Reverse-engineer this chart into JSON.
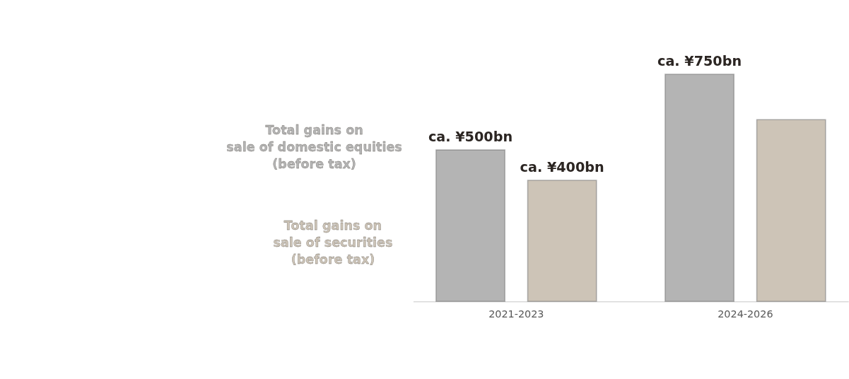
{
  "chart_data": {
    "type": "bar",
    "categories": [
      "2021-2023",
      "2024-2026"
    ],
    "series": [
      {
        "name": "Total gains on\nsale of domestic equities\n(before tax)",
        "color": "#b4b4b4",
        "values": [
          500,
          750
        ],
        "value_labels": [
          "ca. ¥500bn",
          "ca. ¥750bn"
        ]
      },
      {
        "name": "Total gains on\nsale of securities\n(before tax)",
        "color": "#cdc4b7",
        "values": [
          400,
          600
        ],
        "value_labels": [
          "ca. ¥400bn",
          null
        ]
      }
    ],
    "grid": false
  }
}
